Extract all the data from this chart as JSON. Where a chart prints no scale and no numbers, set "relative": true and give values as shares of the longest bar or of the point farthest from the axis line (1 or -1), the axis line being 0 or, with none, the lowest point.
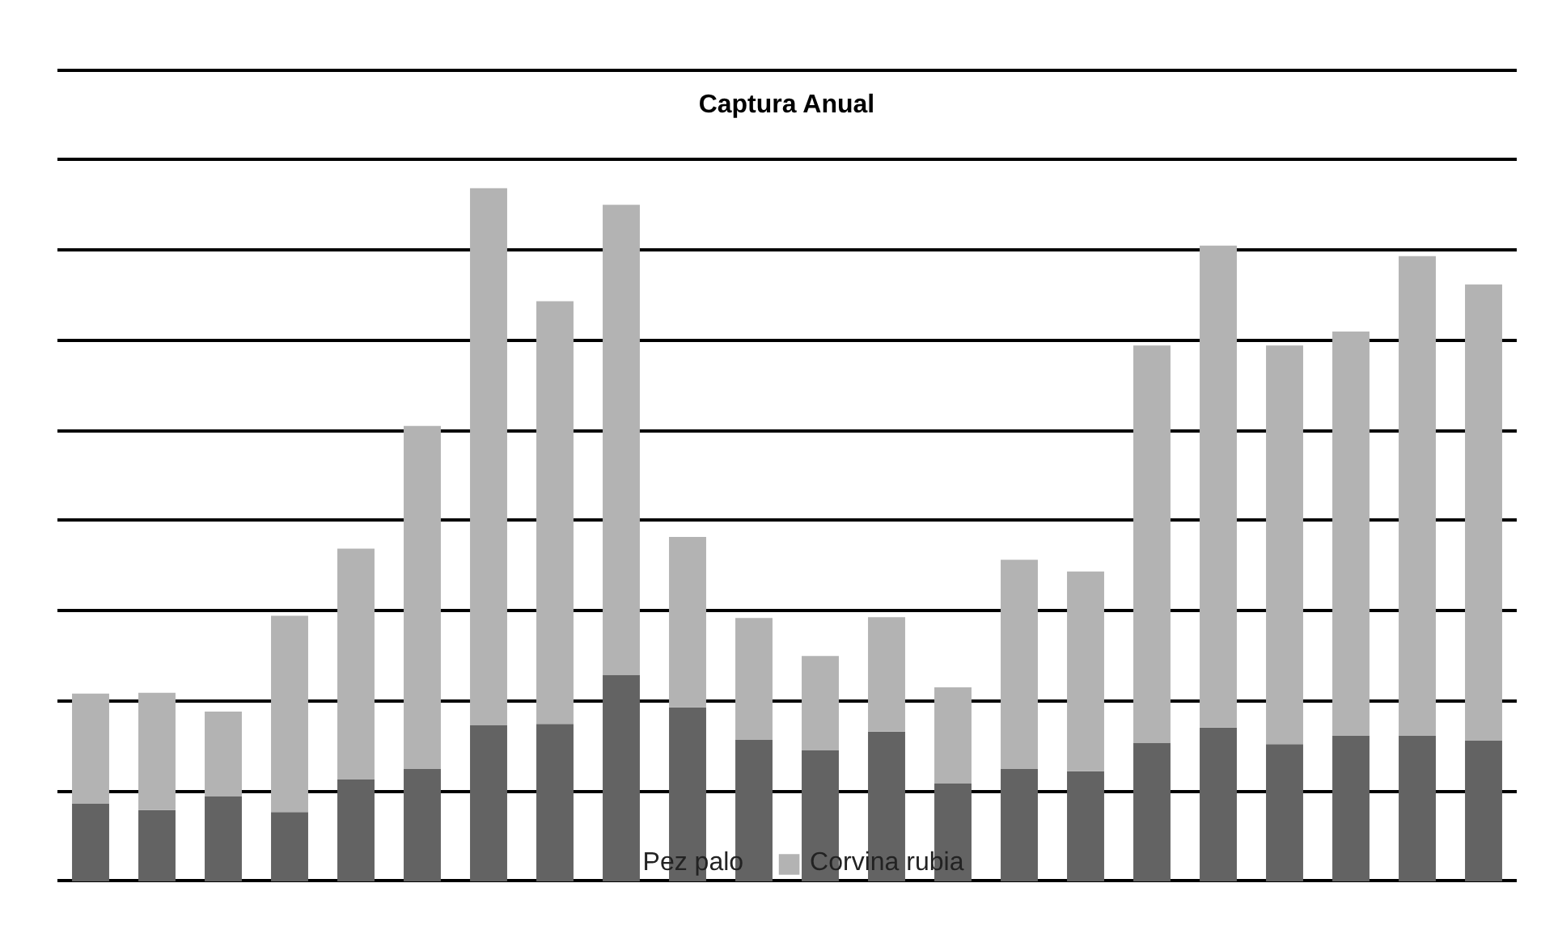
{
  "chart_data": {
    "type": "bar",
    "title": "Captura Anual",
    "stacked": true,
    "relative": true,
    "grid": "y",
    "legend": "bottom",
    "tick_labels": false,
    "categories": [
      null,
      null,
      null,
      null,
      null,
      null,
      null,
      null,
      null,
      null,
      null,
      null,
      null,
      null,
      null,
      null,
      null,
      null,
      null,
      null,
      null,
      null
    ],
    "series": [
      {
        "name": "Pez palo",
        "color": "#636363",
        "values": [
          0.112,
          0.103,
          0.123,
          0.1,
          0.147,
          0.162,
          0.225,
          0.227,
          0.298,
          0.251,
          0.204,
          0.189,
          0.216,
          0.141,
          0.162,
          0.159,
          0.2,
          0.222,
          0.198,
          0.21,
          0.21,
          0.203
        ]
      },
      {
        "name": "Corvina rubia",
        "color": "#b3b3b3",
        "values": [
          0.159,
          0.169,
          0.122,
          0.283,
          0.333,
          0.495,
          0.775,
          0.61,
          0.678,
          0.246,
          0.176,
          0.136,
          0.165,
          0.139,
          0.302,
          0.288,
          0.573,
          0.695,
          0.575,
          0.583,
          0.692,
          0.658
        ]
      }
    ]
  }
}
